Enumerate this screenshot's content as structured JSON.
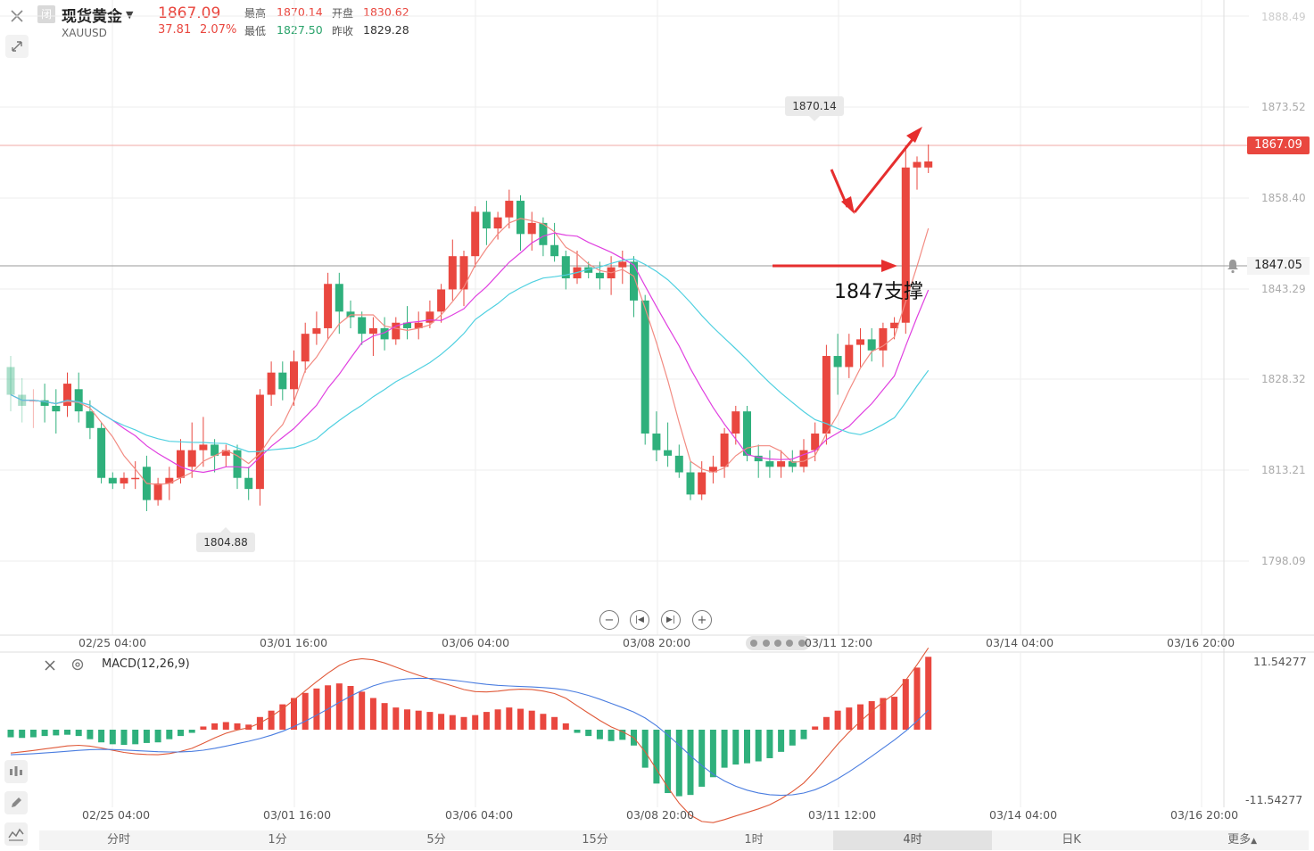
{
  "header": {
    "close_icon": "close-icon",
    "badge": "闭",
    "name": "现货黄金",
    "code": "XAUUSD",
    "last_price": "1867.09",
    "change": "37.81",
    "change_pct": "2.07%",
    "high_label": "最高",
    "high_value": "1870.14",
    "open_label": "开盘",
    "open_value": "1830.62",
    "low_label": "最低",
    "low_value": "1827.50",
    "prev_close_label": "昨收",
    "prev_close_value": "1829.28"
  },
  "colors": {
    "up": "#e9473f",
    "down": "#2fb07c",
    "ma5": "#f28b82",
    "ma10": "#e040e0",
    "ma20": "#4fd0e0"
  },
  "price_axis": {
    "ticks": [
      "1888.49",
      "1873.52",
      "1858.40",
      "1843.29",
      "1828.32",
      "1813.21",
      "1798.09"
    ],
    "current_price_tag": "1867.09",
    "alert_price_tag": "1847.05"
  },
  "annotations": {
    "high_marker": "1870.14",
    "low_marker": "1804.88",
    "support_text": "1847支撑"
  },
  "time_axis": {
    "labels": [
      "02/25 04:00",
      "03/01 16:00",
      "03/06 04:00",
      "03/08 20:00",
      "03/11 12:00",
      "03/14 04:00",
      "03/16 20:00"
    ]
  },
  "macd": {
    "label": "MACD(12,26,9)",
    "top_value": "11.54277",
    "bottom_value": "-11.54277"
  },
  "tabs": [
    "分时",
    "1分",
    "5分",
    "15分",
    "1时",
    "4时",
    "日K",
    "更多"
  ],
  "active_tab": "4时",
  "chart_data": {
    "type": "candlestick",
    "ylim": [
      1790,
      1893
    ],
    "candles": [
      [
        1830,
        1832,
        1822,
        1825
      ],
      [
        1825,
        1828,
        1820,
        1823
      ],
      [
        1824,
        1826,
        1819,
        1824
      ],
      [
        1824,
        1827,
        1820,
        1823
      ],
      [
        1823,
        1826,
        1818,
        1822
      ],
      [
        1823,
        1829,
        1821,
        1827
      ],
      [
        1826,
        1829,
        1820,
        1822
      ],
      [
        1822,
        1824,
        1817,
        1819
      ],
      [
        1819,
        1820,
        1809,
        1810
      ],
      [
        1810,
        1811,
        1808,
        1809
      ],
      [
        1809,
        1811,
        1808,
        1810
      ],
      [
        1810,
        1813,
        1808,
        1810
      ],
      [
        1812,
        1814,
        1804,
        1806
      ],
      [
        1806,
        1810,
        1805,
        1809
      ],
      [
        1809,
        1812,
        1806,
        1810
      ],
      [
        1810,
        1817,
        1809,
        1815
      ],
      [
        1812,
        1820,
        1810,
        1815
      ],
      [
        1815,
        1821,
        1812,
        1816
      ],
      [
        1816,
        1817,
        1811,
        1814
      ],
      [
        1814,
        1816,
        1812,
        1815
      ],
      [
        1815,
        1816,
        1808,
        1810
      ],
      [
        1810,
        1812,
        1806,
        1808
      ],
      [
        1808,
        1826,
        1805,
        1825
      ],
      [
        1825,
        1831,
        1823,
        1829
      ],
      [
        1829,
        1831,
        1824,
        1826
      ],
      [
        1826,
        1833,
        1823,
        1831
      ],
      [
        1831,
        1838,
        1829,
        1836
      ],
      [
        1836,
        1840,
        1834,
        1837
      ],
      [
        1837,
        1847,
        1835,
        1845
      ],
      [
        1845,
        1847,
        1836,
        1840
      ],
      [
        1840,
        1842,
        1837,
        1839
      ],
      [
        1839,
        1840,
        1834,
        1836
      ],
      [
        1836,
        1839,
        1832,
        1837
      ],
      [
        1837,
        1839,
        1833,
        1835
      ],
      [
        1835,
        1839,
        1834,
        1838
      ],
      [
        1838,
        1841,
        1835,
        1837
      ],
      [
        1837,
        1840,
        1835,
        1838
      ],
      [
        1838,
        1842,
        1837,
        1840
      ],
      [
        1840,
        1845,
        1838,
        1844
      ],
      [
        1844,
        1853,
        1842,
        1850
      ],
      [
        1844,
        1851,
        1841,
        1850
      ],
      [
        1850,
        1859,
        1848,
        1858
      ],
      [
        1858,
        1860,
        1852,
        1855
      ],
      [
        1855,
        1858,
        1853,
        1857
      ],
      [
        1857,
        1862,
        1855,
        1860
      ],
      [
        1860,
        1861,
        1851,
        1854
      ],
      [
        1854,
        1858,
        1851,
        1856
      ],
      [
        1856,
        1857,
        1850,
        1852
      ],
      [
        1852,
        1856,
        1849,
        1850
      ],
      [
        1850,
        1851,
        1844,
        1846
      ],
      [
        1846,
        1851,
        1845,
        1848
      ],
      [
        1848,
        1849,
        1846,
        1847
      ],
      [
        1847,
        1849,
        1844,
        1846
      ],
      [
        1846,
        1850,
        1843,
        1848
      ],
      [
        1848,
        1851,
        1845,
        1849
      ],
      [
        1849,
        1850,
        1839,
        1842
      ],
      [
        1842,
        1843,
        1816,
        1818
      ],
      [
        1818,
        1822,
        1813,
        1815
      ],
      [
        1815,
        1820,
        1812,
        1814
      ],
      [
        1814,
        1816,
        1810,
        1811
      ],
      [
        1811,
        1813,
        1806,
        1807
      ],
      [
        1807,
        1813,
        1806,
        1811
      ],
      [
        1811,
        1814,
        1809,
        1812
      ],
      [
        1812,
        1819,
        1810,
        1818
      ],
      [
        1818,
        1823,
        1816,
        1822
      ],
      [
        1822,
        1823,
        1813,
        1814
      ],
      [
        1814,
        1816,
        1810,
        1813
      ],
      [
        1813,
        1815,
        1810,
        1812
      ],
      [
        1812,
        1815,
        1810,
        1813
      ],
      [
        1813,
        1815,
        1811,
        1812
      ],
      [
        1812,
        1817,
        1811,
        1815
      ],
      [
        1815,
        1820,
        1813,
        1818
      ],
      [
        1818,
        1834,
        1816,
        1832
      ],
      [
        1832,
        1836,
        1825,
        1830
      ],
      [
        1830,
        1836,
        1828,
        1834
      ],
      [
        1834,
        1837,
        1830,
        1835
      ],
      [
        1835,
        1837,
        1831,
        1833
      ],
      [
        1833,
        1838,
        1830,
        1837
      ],
      [
        1837,
        1839,
        1835,
        1838
      ],
      [
        1838,
        1870,
        1836,
        1866
      ],
      [
        1866,
        1868,
        1862,
        1867
      ],
      [
        1866,
        1870.14,
        1865,
        1867.09
      ]
    ],
    "macd_hist": [
      -1.2,
      -1.3,
      -1.2,
      -1.0,
      -0.9,
      -0.8,
      -1.0,
      -1.5,
      -2.0,
      -2.3,
      -2.4,
      -2.3,
      -2.1,
      -2.0,
      -1.5,
      -1.0,
      -0.5,
      0.5,
      1.0,
      1.2,
      1.0,
      0.8,
      2.0,
      3.0,
      4.0,
      5.0,
      5.8,
      6.5,
      7.0,
      7.3,
      6.9,
      6.0,
      5.0,
      4.2,
      3.5,
      3.2,
      3.0,
      2.8,
      2.5,
      2.3,
      2.0,
      2.3,
      2.8,
      3.2,
      3.5,
      3.3,
      3.0,
      2.5,
      2.0,
      1.0,
      -0.5,
      -1.0,
      -1.5,
      -1.8,
      -1.6,
      -2.5,
      -6.0,
      -8.5,
      -10.0,
      -10.5,
      -10.3,
      -9.0,
      -7.5,
      -6.0,
      -5.5,
      -5.3,
      -5.0,
      -4.5,
      -3.5,
      -2.5,
      -1.5,
      0.5,
      2.0,
      3.0,
      3.5,
      4.0,
      4.5,
      5.0,
      5.2,
      8.0,
      9.8,
      11.5
    ]
  }
}
